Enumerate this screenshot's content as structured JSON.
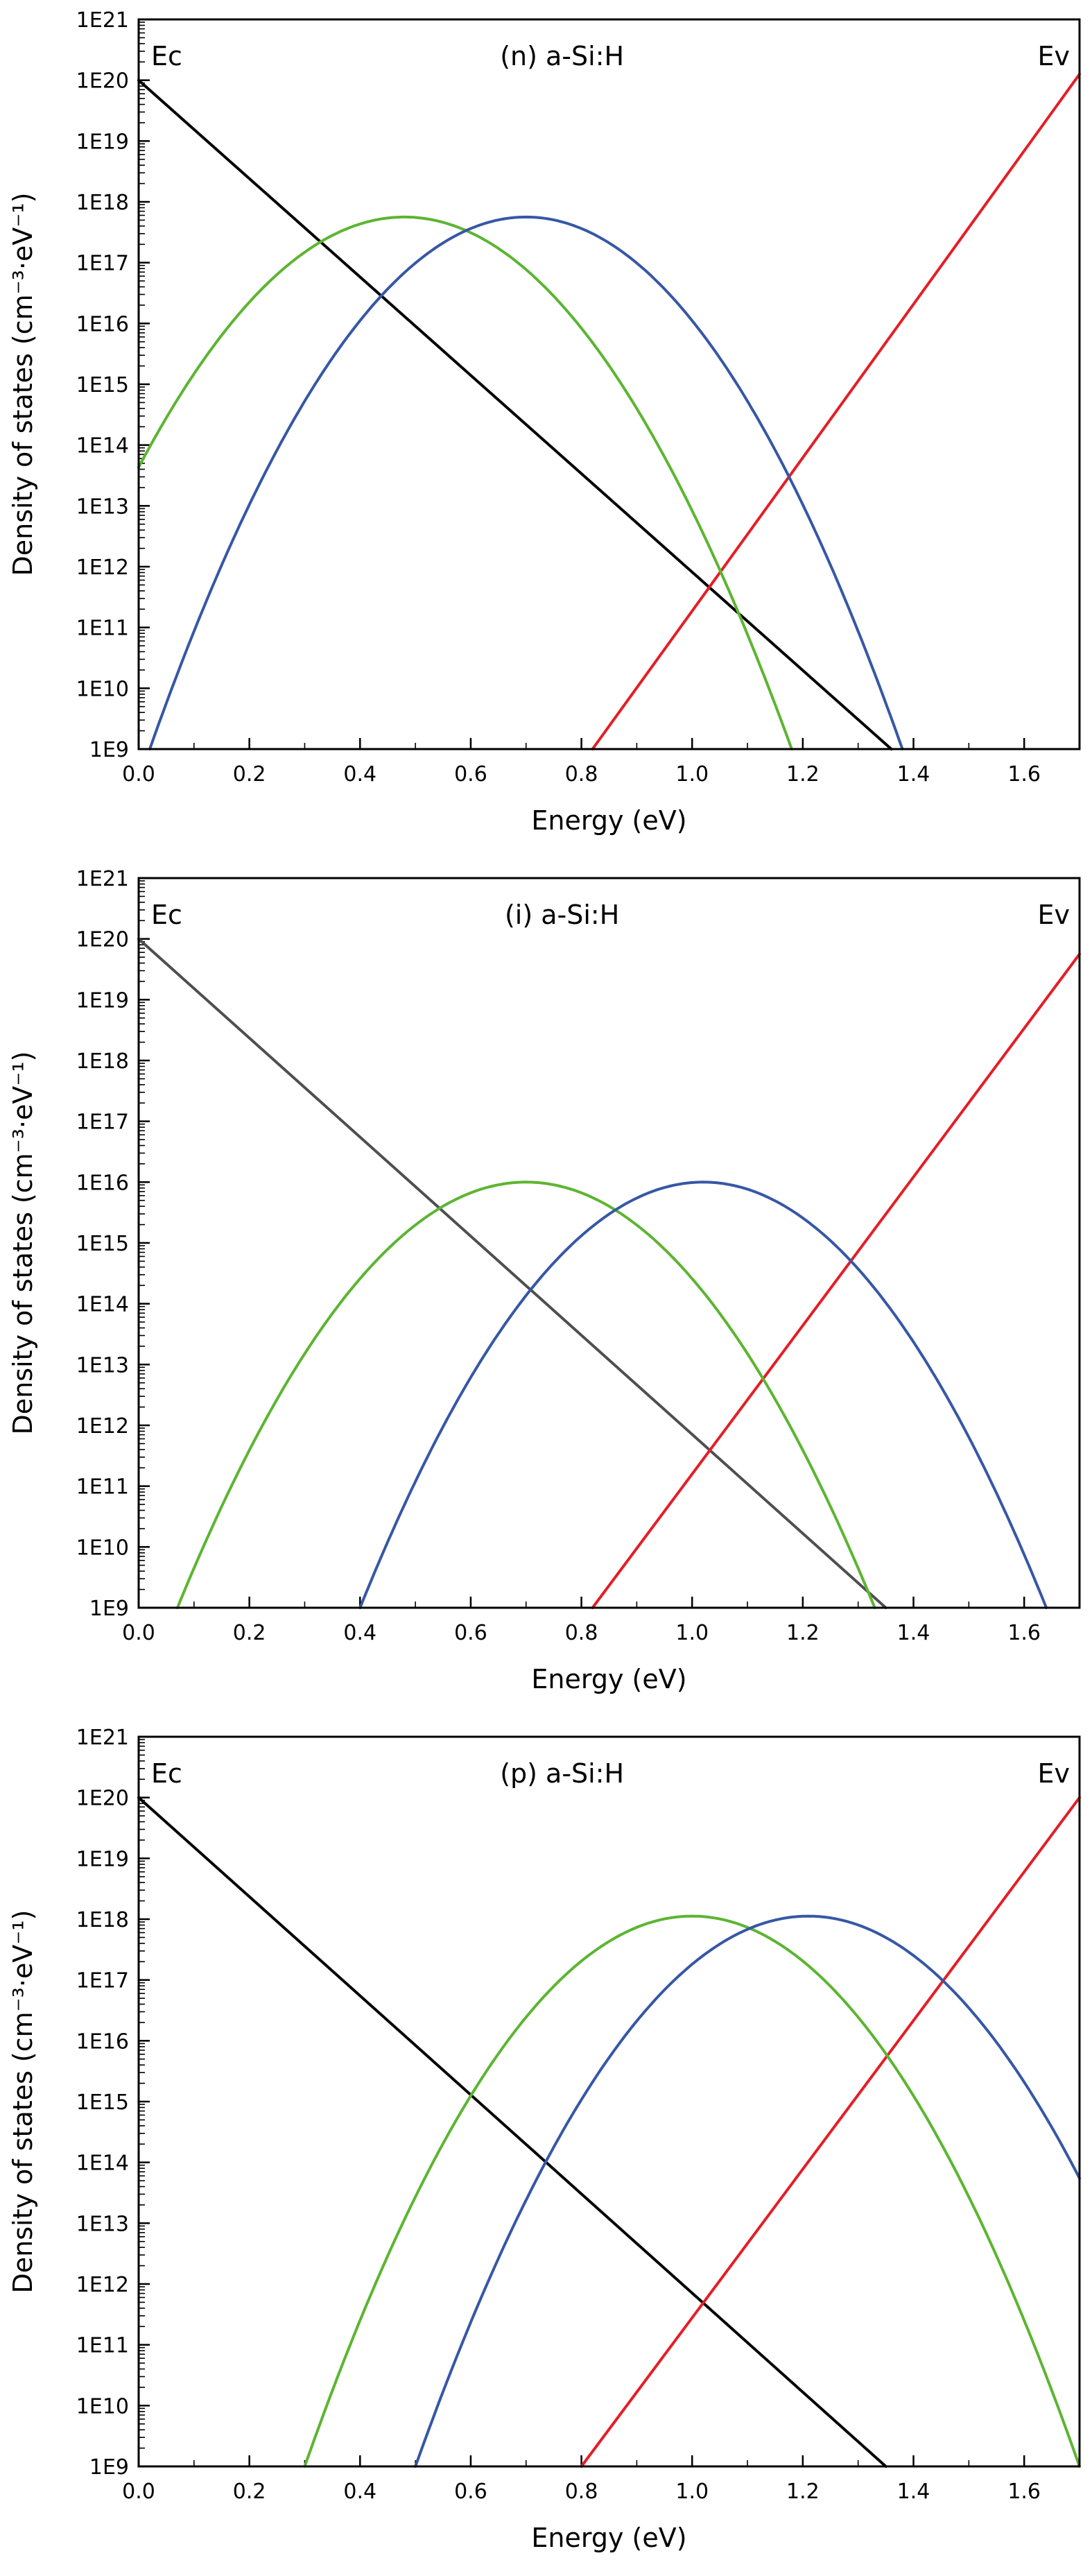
{
  "page": {
    "background": "#ffffff"
  },
  "chart_data": [
    {
      "type": "line",
      "title": "(n) a-Si:H",
      "xlabel": "Energy (eV)",
      "ylabel": "Density of states (cm⁻³·eV⁻¹)",
      "band_labels": {
        "left": "Ec",
        "right": "Ev"
      },
      "xlim": [
        0,
        1.7
      ],
      "x_ticks": [
        0,
        0.2,
        0.4,
        0.6,
        0.8,
        1.0,
        1.2,
        1.4,
        1.6
      ],
      "x_tick_labels": [
        "0.0",
        "0.2",
        "0.4",
        "0.6",
        "0.8",
        "1.0",
        "1.2",
        "1.4",
        "1.6"
      ],
      "x_minor_step": 0.1,
      "y_scale": "log10",
      "y_exp_min": 9,
      "y_exp_max": 21,
      "y_tick_labels": [
        "1E9",
        "1E10",
        "1E11",
        "1E12",
        "1E13",
        "1E14",
        "1E15",
        "1E16",
        "1E17",
        "1E18",
        "1E19",
        "1E20",
        "1E21"
      ],
      "grid": false,
      "legend": "none",
      "series": [
        {
          "name": "conduction-band-tail",
          "kind": "exp-line",
          "color": "#000000",
          "points_exp": [
            [
              0,
              20
            ],
            [
              1.36,
              9
            ]
          ]
        },
        {
          "name": "valence-band-tail",
          "kind": "exp-line",
          "color": "#e41e26",
          "points_exp": [
            [
              0.82,
              9
            ],
            [
              1.7,
              20.1
            ]
          ]
        },
        {
          "name": "donor-like-gaussian",
          "kind": "gaussian",
          "color": "#5cb531",
          "center": 0.48,
          "peak_exp": 17.75,
          "half_width": 0.7
        },
        {
          "name": "acceptor-like-gaussian",
          "kind": "gaussian",
          "color": "#3757a6",
          "center": 0.7,
          "peak_exp": 17.75,
          "half_width": 0.68
        }
      ]
    },
    {
      "type": "line",
      "title": "(i) a-Si:H",
      "xlabel": "Energy (eV)",
      "ylabel": "Density of states (cm⁻³·eV⁻¹)",
      "band_labels": {
        "left": "Ec",
        "right": "Ev"
      },
      "xlim": [
        0,
        1.7
      ],
      "x_ticks": [
        0,
        0.2,
        0.4,
        0.6,
        0.8,
        1.0,
        1.2,
        1.4,
        1.6
      ],
      "x_tick_labels": [
        "0.0",
        "0.2",
        "0.4",
        "0.6",
        "0.8",
        "1.0",
        "1.2",
        "1.4",
        "1.6"
      ],
      "x_minor_step": 0.1,
      "y_scale": "log10",
      "y_exp_min": 9,
      "y_exp_max": 21,
      "y_tick_labels": [
        "1E9",
        "1E10",
        "1E11",
        "1E12",
        "1E13",
        "1E14",
        "1E15",
        "1E16",
        "1E17",
        "1E18",
        "1E19",
        "1E20",
        "1E21"
      ],
      "grid": false,
      "legend": "none",
      "series": [
        {
          "name": "conduction-band-tail",
          "kind": "exp-line",
          "color": "#4f4f4f",
          "points_exp": [
            [
              0,
              20
            ],
            [
              1.35,
              9
            ]
          ]
        },
        {
          "name": "valence-band-tail",
          "kind": "exp-line",
          "color": "#e41e26",
          "points_exp": [
            [
              0.82,
              9
            ],
            [
              1.7,
              19.75
            ]
          ]
        },
        {
          "name": "donor-like-gaussian",
          "kind": "gaussian",
          "color": "#5cb531",
          "center": 0.7,
          "peak_exp": 16.0,
          "half_width": 0.63
        },
        {
          "name": "acceptor-like-gaussian",
          "kind": "gaussian",
          "color": "#3757a6",
          "center": 1.02,
          "peak_exp": 16.0,
          "half_width": 0.62
        }
      ]
    },
    {
      "type": "line",
      "title": "(p) a-Si:H",
      "xlabel": "Energy (eV)",
      "ylabel": "Density of states (cm⁻³·eV⁻¹)",
      "band_labels": {
        "left": "Ec",
        "right": "Ev"
      },
      "xlim": [
        0,
        1.7
      ],
      "x_ticks": [
        0,
        0.2,
        0.4,
        0.6,
        0.8,
        1.0,
        1.2,
        1.4,
        1.6
      ],
      "x_tick_labels": [
        "0.0",
        "0.2",
        "0.4",
        "0.6",
        "0.8",
        "1.0",
        "1.2",
        "1.4",
        "1.6"
      ],
      "x_minor_step": 0.1,
      "y_scale": "log10",
      "y_exp_min": 9,
      "y_exp_max": 21,
      "y_tick_labels": [
        "1E9",
        "1E10",
        "1E11",
        "1E12",
        "1E13",
        "1E14",
        "1E15",
        "1E16",
        "1E17",
        "1E18",
        "1E19",
        "1E20",
        "1E21"
      ],
      "grid": false,
      "legend": "none",
      "series": [
        {
          "name": "conduction-band-tail",
          "kind": "exp-line",
          "color": "#000000",
          "points_exp": [
            [
              0,
              20
            ],
            [
              1.35,
              9
            ]
          ]
        },
        {
          "name": "valence-band-tail",
          "kind": "exp-line",
          "color": "#e41e26",
          "points_exp": [
            [
              0.8,
              9
            ],
            [
              1.7,
              20.0
            ]
          ]
        },
        {
          "name": "donor-like-gaussian",
          "kind": "gaussian",
          "color": "#5cb531",
          "center": 1.0,
          "peak_exp": 18.05,
          "half_width": 0.7
        },
        {
          "name": "acceptor-like-gaussian",
          "kind": "gaussian",
          "color": "#3757a6",
          "center": 1.21,
          "peak_exp": 18.05,
          "half_width": 0.71
        }
      ]
    }
  ]
}
